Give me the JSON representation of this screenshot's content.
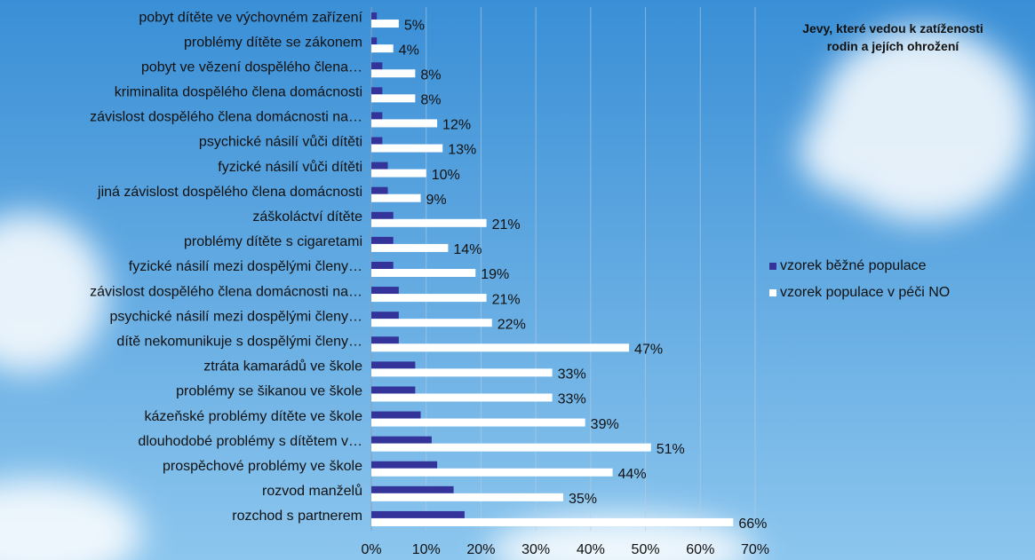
{
  "chart_data": {
    "type": "bar",
    "orientation": "horizontal",
    "title": "Jevy, které vedou k zatíženosti rodin a jejích ohrožení",
    "categories": [
      "pobyt dítěte ve výchovném zařízení",
      "problémy dítěte se zákonem",
      "pobyt ve vězení dospělého člena…",
      "kriminalita dospělého člena domácnosti",
      "závislost dospělého člena domácnosti na…",
      "psychické násilí vůči dítěti",
      "fyzické násilí vůči dítěti",
      "jiná závislost dospělého člena domácnosti",
      "záškoláctví dítěte",
      "problémy dítěte s cigaretami",
      "fyzické násilí mezi dospělými členy…",
      "závislost dospělého člena domácnosti na…",
      "psychické násilí mezi dospělými členy…",
      "dítě nekomunikuje s dospělými členy…",
      "ztráta kamarádů ve škole",
      "problémy se šikanou ve škole",
      "kázeňské problémy dítěte ve škole",
      "dlouhodobé problémy s dítětem v…",
      "prospěchové problémy ve škole",
      "rozvod manželů",
      "rozchod s partnerem"
    ],
    "series": [
      {
        "name": "vzorek běžné populace",
        "color": "#33339a",
        "values": [
          1,
          1,
          2,
          2,
          2,
          2,
          3,
          3,
          4,
          4,
          4,
          5,
          5,
          5,
          8,
          8,
          9,
          11,
          12,
          15,
          17
        ]
      },
      {
        "name": "vzorek populace v péči NO",
        "color": "#ffffff",
        "values": [
          5,
          4,
          8,
          8,
          12,
          13,
          10,
          9,
          21,
          14,
          19,
          21,
          22,
          47,
          33,
          33,
          39,
          51,
          44,
          35,
          66
        ],
        "value_labels": [
          "5%",
          "4%",
          "8%",
          "8%",
          "12%",
          "13%",
          "10%",
          "9%",
          "21%",
          "14%",
          "19%",
          "21%",
          "22%",
          "47%",
          "33%",
          "33%",
          "39%",
          "51%",
          "44%",
          "35%",
          "66%"
        ]
      }
    ],
    "xlim": [
      0,
      70
    ],
    "xticks": [
      {
        "value": 0,
        "label": "0%"
      },
      {
        "value": 10,
        "label": "10%"
      },
      {
        "value": 20,
        "label": "20%"
      },
      {
        "value": 30,
        "label": "30%"
      },
      {
        "value": 40,
        "label": "40%"
      },
      {
        "value": 50,
        "label": "50%"
      },
      {
        "value": 60,
        "label": "60%"
      },
      {
        "value": 70,
        "label": "70%"
      }
    ],
    "grid": true,
    "legend": "right"
  }
}
